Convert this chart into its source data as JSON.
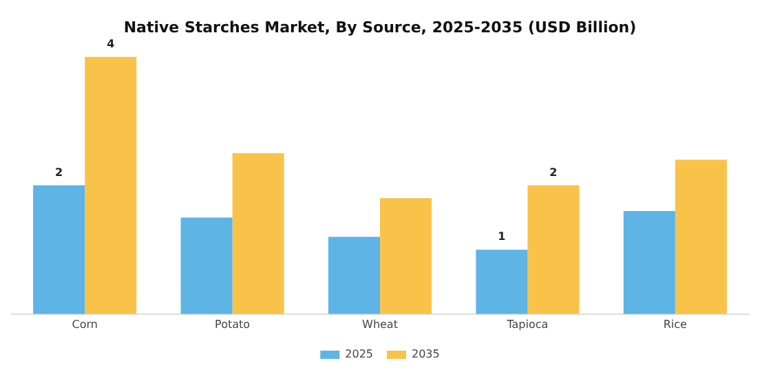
{
  "chart_data": {
    "type": "bar",
    "title": "Native Starches Market, By Source, 2025-2035 (USD Billion)",
    "categories": [
      "Corn",
      "Potato",
      "Wheat",
      "Tapioca",
      "Rice"
    ],
    "tick_labels": "x",
    "legend": "bottom",
    "series": [
      {
        "name": "2025",
        "color": "#5db4e5",
        "values": [
          2,
          1.5,
          1.2,
          1,
          1.6
        ],
        "value_labels": [
          "2",
          null,
          null,
          "1",
          null
        ]
      },
      {
        "name": "2035",
        "color": "#f9c34a",
        "values": [
          4,
          2.5,
          1.8,
          2,
          2.4
        ],
        "value_labels": [
          "4",
          null,
          null,
          "2",
          null
        ]
      }
    ]
  }
}
